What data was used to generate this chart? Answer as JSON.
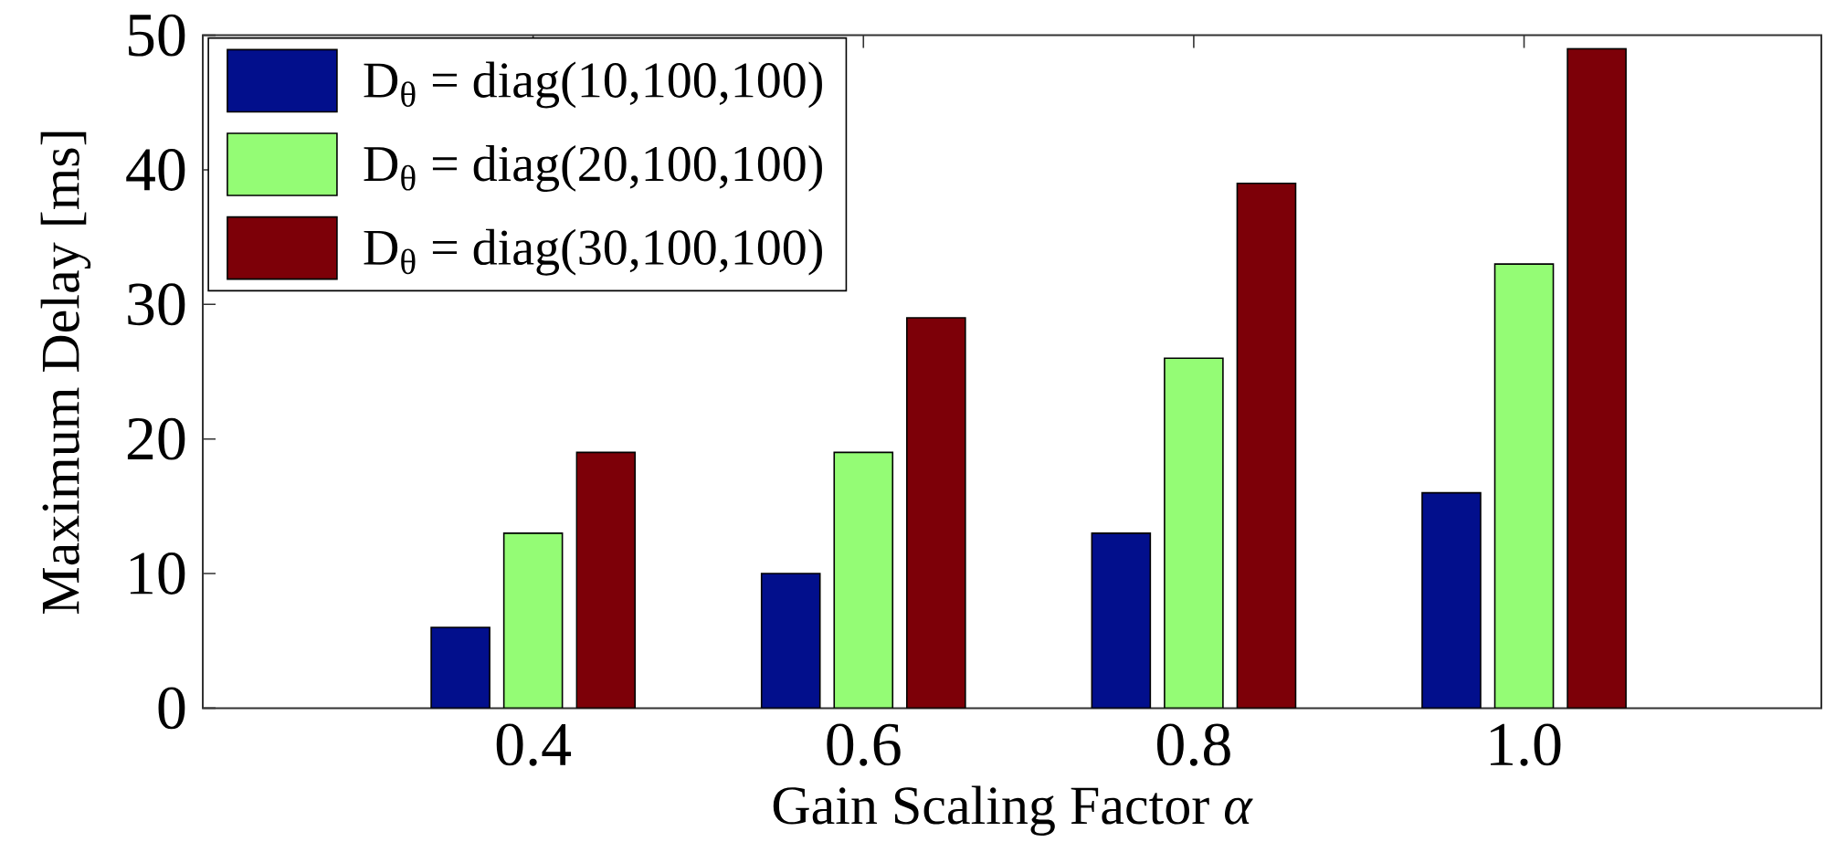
{
  "chart_data": {
    "type": "bar",
    "xlabel": "Gain Scaling Factor *α*",
    "ylabel": "Maximum Delay [ms]",
    "categories": [
      "0.4",
      "0.6",
      "0.8",
      "1.0"
    ],
    "series": [
      {
        "name": "D$_{θ}$ = diag(10,100,100)",
        "color": "#020f8c",
        "values": [
          6,
          10,
          13,
          16
        ]
      },
      {
        "name": "D$_{θ}$ = diag(20,100,100)",
        "color": "#94fc75",
        "values": [
          13,
          19,
          26,
          33
        ]
      },
      {
        "name": "D$_{θ}$ = diag(30,100,100)",
        "color": "#7d0008",
        "values": [
          19,
          29,
          39,
          49
        ]
      }
    ],
    "ylim": [
      0,
      50
    ],
    "yticks": [
      0,
      10,
      20,
      30,
      40,
      50
    ],
    "legend": "top left",
    "grid": false
  }
}
